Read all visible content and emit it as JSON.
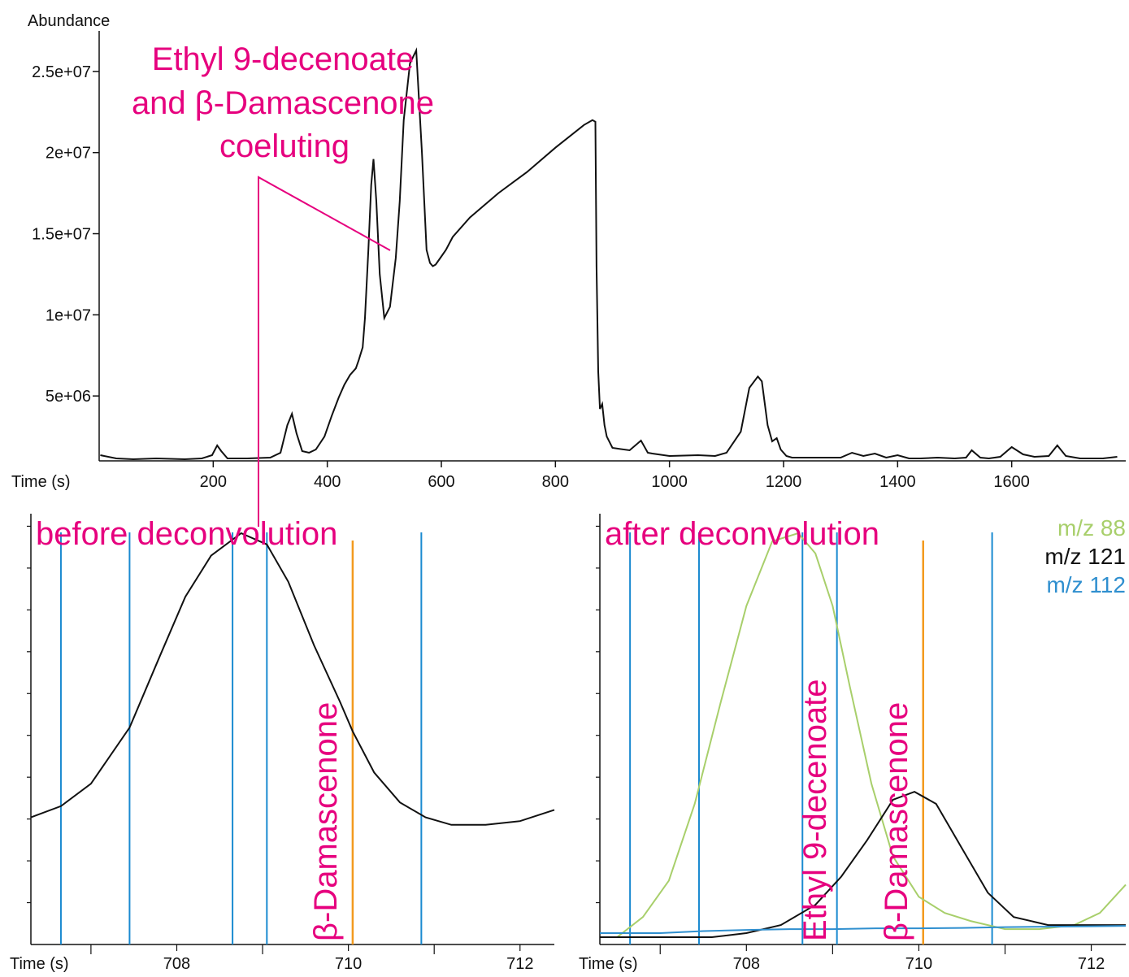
{
  "chart_data": [
    {
      "type": "line",
      "ylabel": "Abundance",
      "xlabel": "Time (s)",
      "xlim": [
        0,
        1800
      ],
      "ylim": [
        1000000,
        27500000
      ],
      "x_ticks": [
        200,
        400,
        600,
        800,
        1000,
        1200,
        1400,
        1600
      ],
      "y_ticks": [
        5000000,
        10000000,
        15000000,
        20000000,
        25000000
      ],
      "y_tick_labels": [
        "5e+06",
        "1e+07",
        "1.5e+07",
        "2e+07",
        "2.5e+07"
      ],
      "annotation": [
        "Ethyl 9-decenoate",
        "and β-Damascenone",
        "coeluting"
      ],
      "series": [
        {
          "color": "#111111",
          "x": [
            2,
            30,
            60,
            100,
            150,
            180,
            198,
            207,
            214,
            225,
            260,
            300,
            318,
            330,
            338,
            346,
            356,
            368,
            380,
            395,
            408,
            420,
            430,
            440,
            450,
            455,
            462,
            466,
            472,
            477,
            481,
            486,
            492,
            500,
            510,
            520,
            527,
            534,
            545,
            556,
            566,
            574,
            580,
            585,
            590,
            596,
            602,
            608,
            620,
            650,
            700,
            750,
            800,
            850,
            865,
            870,
            872,
            875,
            878,
            882,
            886,
            890,
            900,
            930,
            950,
            962,
            970,
            1000,
            1050,
            1080,
            1100,
            1125,
            1140,
            1155,
            1162,
            1172,
            1180,
            1188,
            1195,
            1205,
            1215,
            1240,
            1300,
            1320,
            1340,
            1360,
            1380,
            1400,
            1420,
            1440,
            1470,
            1500,
            1520,
            1530,
            1545,
            1560,
            1580,
            1600,
            1620,
            1640,
            1665,
            1680,
            1695,
            1720,
            1760,
            1785
          ],
          "y": [
            1350000,
            1150000,
            1100000,
            1150000,
            1100000,
            1150000,
            1350000,
            1950000,
            1600000,
            1150000,
            1150000,
            1200000,
            1500000,
            3200000,
            3900000,
            2700000,
            1600000,
            1500000,
            1700000,
            2500000,
            3800000,
            4900000,
            5700000,
            6300000,
            6700000,
            7200000,
            8000000,
            9800000,
            14000000,
            18000000,
            19600000,
            17000000,
            12500000,
            9800000,
            10500000,
            13500000,
            17000000,
            22000000,
            25500000,
            26300000,
            20000000,
            14000000,
            13200000,
            13000000,
            13100000,
            13400000,
            13700000,
            14000000,
            14800000,
            16000000,
            17500000,
            18800000,
            20300000,
            21700000,
            22000000,
            21900000,
            13000000,
            6500000,
            4200000,
            4500000,
            3200000,
            2500000,
            1800000,
            1650000,
            2250000,
            1500000,
            1450000,
            1300000,
            1350000,
            1300000,
            1500000,
            2800000,
            5500000,
            6200000,
            5900000,
            3200000,
            2200000,
            2400000,
            1700000,
            1300000,
            1200000,
            1200000,
            1200000,
            1500000,
            1300000,
            1450000,
            1200000,
            1350000,
            1150000,
            1150000,
            1200000,
            1150000,
            1200000,
            1650000,
            1200000,
            1150000,
            1250000,
            1850000,
            1400000,
            1250000,
            1300000,
            1950000,
            1300000,
            1150000,
            1150000,
            1250000
          ]
        }
      ]
    },
    {
      "type": "line",
      "title": "before deconvolution",
      "xlabel": "Time (s)",
      "xlim": [
        706.3,
        712.4
      ],
      "x_ticks": [
        707,
        708,
        709,
        710,
        711,
        712
      ],
      "x_tick_labels": [
        "708",
        "710",
        "712"
      ],
      "vertical_lines": {
        "blue": [
          706.65,
          707.45,
          708.65,
          709.05,
          710.85
        ],
        "orange": [
          710.05
        ]
      },
      "vertical_label": "β-Damascenone",
      "series": [
        {
          "color": "#111111",
          "x": [
            706.3,
            706.65,
            707.0,
            707.45,
            707.8,
            708.1,
            708.4,
            708.75,
            709.05,
            709.3,
            709.6,
            709.9,
            710.05,
            710.3,
            710.6,
            710.9,
            711.2,
            711.6,
            712.0,
            712.4
          ],
          "y": [
            0.34,
            0.37,
            0.43,
            0.58,
            0.77,
            0.93,
            1.04,
            1.1,
            1.07,
            0.97,
            0.8,
            0.65,
            0.57,
            0.46,
            0.38,
            0.34,
            0.32,
            0.32,
            0.33,
            0.36
          ]
        }
      ]
    },
    {
      "type": "line",
      "title": "after deconvolution",
      "xlabel": "Time (s)",
      "xlim": [
        706.3,
        712.4
      ],
      "x_ticks": [
        707,
        708,
        709,
        710,
        711,
        712
      ],
      "x_tick_labels": [
        "708",
        "710",
        "712"
      ],
      "vertical_lines": {
        "blue": [
          706.65,
          707.45,
          708.65,
          709.05,
          710.85
        ],
        "orange": [
          710.05
        ]
      },
      "vertical_labels": [
        "Ethyl 9-decenoate",
        "β-Damascenone"
      ],
      "series": [
        {
          "name": "m/z 88",
          "color": "#a8cf6b",
          "x": [
            706.5,
            706.8,
            707.1,
            707.4,
            707.7,
            708.0,
            708.3,
            708.6,
            708.8,
            709.0,
            709.2,
            709.45,
            709.7,
            710.0,
            710.3,
            710.6,
            711.0,
            711.4,
            711.8,
            712.1,
            712.4
          ],
          "y": [
            0.0,
            0.05,
            0.14,
            0.33,
            0.58,
            0.82,
            0.98,
            1.0,
            0.95,
            0.82,
            0.62,
            0.38,
            0.2,
            0.1,
            0.06,
            0.04,
            0.02,
            0.02,
            0.03,
            0.06,
            0.13
          ]
        },
        {
          "name": "m/z 121",
          "color": "#111111",
          "x": [
            706.3,
            707.0,
            707.6,
            708.0,
            708.4,
            708.8,
            709.1,
            709.4,
            709.7,
            709.95,
            710.2,
            710.5,
            710.8,
            711.1,
            711.5,
            712.0,
            712.4
          ],
          "y": [
            0.0,
            0.0,
            0.0,
            0.01,
            0.03,
            0.08,
            0.15,
            0.24,
            0.34,
            0.36,
            0.33,
            0.22,
            0.11,
            0.05,
            0.03,
            0.03,
            0.03
          ]
        },
        {
          "name": "m/z 112",
          "color": "#2f8fcf",
          "x": [
            706.3,
            707.0,
            707.5,
            708.0,
            708.5,
            709.0,
            709.5,
            710.0,
            710.5,
            711.0,
            711.5,
            712.0,
            712.4
          ],
          "y": [
            0.01,
            0.01,
            0.015,
            0.018,
            0.02,
            0.02,
            0.022,
            0.022,
            0.023,
            0.025,
            0.026,
            0.027,
            0.028
          ]
        }
      ]
    }
  ]
}
